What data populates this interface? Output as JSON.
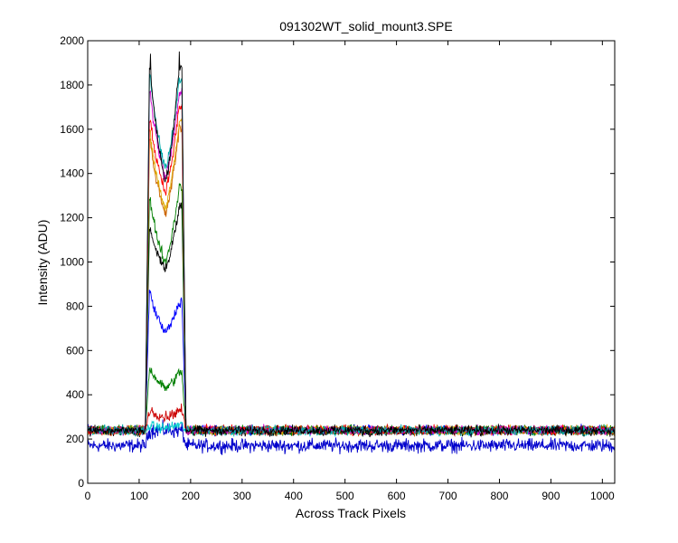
{
  "chart_data": {
    "type": "line",
    "title": "091302WT_solid_mount3.SPE",
    "xlabel": "Across Track Pixels",
    "ylabel": "Intensity (ADU)",
    "xlim": [
      0,
      1024
    ],
    "ylim": [
      0,
      2000
    ],
    "xticks": [
      0,
      100,
      200,
      300,
      400,
      500,
      600,
      700,
      800,
      900,
      1000
    ],
    "yticks": [
      0,
      200,
      400,
      600,
      800,
      1000,
      1200,
      1400,
      1600,
      1800,
      2000
    ],
    "grid": false,
    "legend": "none",
    "signal_edges": {
      "rise_x": [
        112,
        120
      ],
      "fall_x": [
        183,
        191
      ]
    },
    "series": [
      {
        "color": "#0000cc",
        "baseline": 170,
        "noise": 45,
        "left_peak": 240,
        "dip": 240,
        "right_peak": 240,
        "edge_spike": 0
      },
      {
        "color": "#00cccc",
        "baseline": 235,
        "noise": 28,
        "left_peak": 260,
        "dip": 250,
        "right_peak": 265,
        "edge_spike": 0
      },
      {
        "color": "#cc0000",
        "baseline": 240,
        "noise": 30,
        "left_peak": 330,
        "dip": 300,
        "right_peak": 330,
        "edge_spike": 0
      },
      {
        "color": "#007f00",
        "baseline": 240,
        "noise": 30,
        "left_peak": 520,
        "dip": 430,
        "right_peak": 500,
        "edge_spike": 0
      },
      {
        "color": "#0000ff",
        "baseline": 240,
        "noise": 30,
        "left_peak": 860,
        "dip": 680,
        "right_peak": 820,
        "edge_spike": 0
      },
      {
        "color": "#000000",
        "baseline": 235,
        "noise": 30,
        "left_peak": 1150,
        "dip": 970,
        "right_peak": 1250,
        "edge_spike": 0
      },
      {
        "color": "#007f00",
        "baseline": 240,
        "noise": 30,
        "left_peak": 1280,
        "dip": 1000,
        "right_peak": 1340,
        "edge_spike": 0
      },
      {
        "color": "#cc6600",
        "baseline": 240,
        "noise": 30,
        "left_peak": 1550,
        "dip": 1220,
        "right_peak": 1600,
        "edge_spike": 0
      },
      {
        "color": "#ddaa00",
        "baseline": 240,
        "noise": 30,
        "left_peak": 1590,
        "dip": 1240,
        "right_peak": 1640,
        "edge_spike": 0
      },
      {
        "color": "#ff0000",
        "baseline": 240,
        "noise": 30,
        "left_peak": 1650,
        "dip": 1320,
        "right_peak": 1700,
        "edge_spike": 0
      },
      {
        "color": "#cc00cc",
        "baseline": 240,
        "noise": 30,
        "left_peak": 1780,
        "dip": 1380,
        "right_peak": 1760,
        "edge_spike": 0
      },
      {
        "color": "#00aaaa",
        "baseline": 240,
        "noise": 30,
        "left_peak": 1850,
        "dip": 1420,
        "right_peak": 1820,
        "edge_spike": 0
      },
      {
        "color": "#000000",
        "baseline": 240,
        "noise": 30,
        "left_peak": 1880,
        "dip": 1360,
        "right_peak": 1880,
        "edge_spike": 1950
      }
    ]
  }
}
